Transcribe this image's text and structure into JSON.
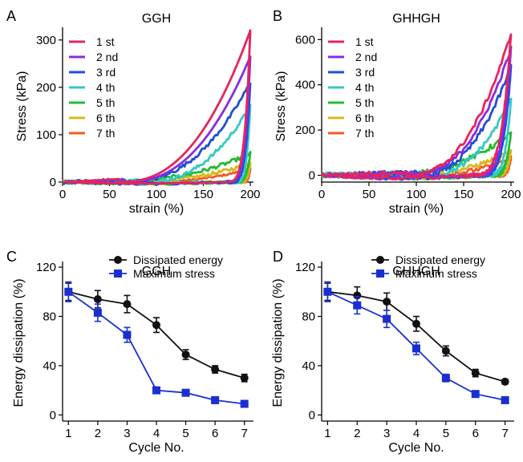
{
  "colors": {
    "c1": "#e6245f",
    "c2": "#8a2be2",
    "c3": "#1f4fd6",
    "c4": "#34c9c4",
    "c5": "#22bb33",
    "c6": "#d6b81a",
    "c7": "#f05a28",
    "dissipated": "#111111",
    "maxstress": "#1a2fd0"
  },
  "chart_data": [
    {
      "panel": "A",
      "type": "line",
      "title": "GGH",
      "xlabel": "strain (%)",
      "ylabel": "Stress (kPa)",
      "xlim": [
        0,
        200
      ],
      "ylim": [
        0,
        320
      ],
      "xticks": [
        "0",
        "50",
        "100",
        "150",
        "200"
      ],
      "yticks": [
        "0",
        "100",
        "200",
        "300"
      ],
      "legend_position": "top-left",
      "series": [
        {
          "name": "1 st",
          "color_key": "c1",
          "peak": 320,
          "onset": 60,
          "returnStart": 170,
          "noise": 0
        },
        {
          "name": "2 nd",
          "color_key": "c2",
          "peak": 265,
          "onset": 65,
          "returnStart": 172,
          "noise": 0
        },
        {
          "name": "3 rd",
          "color_key": "c3",
          "peak": 210,
          "onset": 65,
          "returnStart": 175,
          "noise": 2
        },
        {
          "name": "4 th",
          "color_key": "c4",
          "peak": 160,
          "onset": 85,
          "returnStart": 180,
          "noise": 2
        },
        {
          "name": "5 th",
          "color_key": "c5",
          "peak": 60,
          "onset": 40,
          "returnStart": 180,
          "noise": 2
        },
        {
          "name": "6 th",
          "color_key": "c6",
          "peak": 40,
          "onset": 60,
          "returnStart": 185,
          "noise": 2
        },
        {
          "name": "7 th",
          "color_key": "c7",
          "peak": 28,
          "onset": 80,
          "returnStart": 190,
          "noise": 1
        }
      ]
    },
    {
      "panel": "B",
      "type": "line",
      "title": "GHHGH",
      "xlabel": "strain (%)",
      "ylabel": "Stress (kPa)",
      "xlim": [
        0,
        200
      ],
      "ylim": [
        -30,
        640
      ],
      "xticks": [
        "0",
        "50",
        "100",
        "150",
        "200"
      ],
      "yticks": [
        "0",
        "200",
        "400",
        "600"
      ],
      "legend_position": "top-left",
      "series": [
        {
          "name": "1 st",
          "color_key": "c1",
          "peak": 625,
          "onset": 90,
          "returnStart": 150,
          "noise": 5
        },
        {
          "name": "2 nd",
          "color_key": "c2",
          "peak": 560,
          "onset": 95,
          "returnStart": 155,
          "noise": 5
        },
        {
          "name": "3 rd",
          "color_key": "c3",
          "peak": 480,
          "onset": 100,
          "returnStart": 160,
          "noise": 6
        },
        {
          "name": "4 th",
          "color_key": "c4",
          "peak": 340,
          "onset": 110,
          "returnStart": 170,
          "noise": 6
        },
        {
          "name": "5 th",
          "color_key": "c5",
          "peak": 185,
          "onset": 60,
          "returnStart": 175,
          "noise": 6
        },
        {
          "name": "6 th",
          "color_key": "c6",
          "peak": 105,
          "onset": 80,
          "returnStart": 180,
          "noise": 5
        },
        {
          "name": "7 th",
          "color_key": "c7",
          "peak": 75,
          "onset": 100,
          "returnStart": 185,
          "noise": 5
        }
      ]
    },
    {
      "panel": "C",
      "type": "line",
      "title": "GGH",
      "xlabel": "Cycle No.",
      "ylabel": "Energy dissipation (%)",
      "xlim": [
        0.8,
        7.2
      ],
      "ylim": [
        -5,
        122
      ],
      "x": [
        1,
        2,
        3,
        4,
        5,
        6,
        7
      ],
      "xticks": [
        "1",
        "2",
        "3",
        "4",
        "5",
        "6",
        "7"
      ],
      "yticks": [
        "0",
        "40",
        "80",
        "120"
      ],
      "legend_position": "top-right",
      "series": [
        {
          "name": "Dissipated energy",
          "color_key": "dissipated",
          "marker": "circle",
          "values": [
            100,
            94,
            90,
            73,
            49,
            37,
            30
          ],
          "errors": [
            7,
            7,
            7,
            6,
            4,
            3,
            3
          ]
        },
        {
          "name": "Maximum stress",
          "color_key": "maxstress",
          "marker": "square",
          "values": [
            100,
            83,
            65,
            20,
            18,
            12,
            9
          ],
          "errors": [
            8,
            7,
            6,
            2,
            2,
            1.5,
            1
          ]
        }
      ]
    },
    {
      "panel": "D",
      "type": "line",
      "title": "GHHGH",
      "xlabel": "Cycle No.",
      "ylabel": "Energy dissipation (%)",
      "xlim": [
        0.8,
        7.2
      ],
      "ylim": [
        -5,
        122
      ],
      "x": [
        1,
        2,
        3,
        4,
        5,
        6,
        7
      ],
      "xticks": [
        "1",
        "2",
        "3",
        "4",
        "5",
        "6",
        "7"
      ],
      "yticks": [
        "0",
        "40",
        "80",
        "120"
      ],
      "legend_position": "top-right",
      "series": [
        {
          "name": "Dissipated energy",
          "color_key": "dissipated",
          "marker": "circle",
          "values": [
            100,
            97,
            92,
            74,
            52,
            34,
            27
          ],
          "errors": [
            7,
            7,
            7,
            6,
            4,
            3,
            2
          ]
        },
        {
          "name": "Maximum stress",
          "color_key": "maxstress",
          "marker": "square",
          "values": [
            100,
            89,
            78,
            54,
            30,
            17,
            12
          ],
          "errors": [
            8,
            7,
            7,
            5,
            3,
            2,
            1.5
          ]
        }
      ]
    }
  ]
}
